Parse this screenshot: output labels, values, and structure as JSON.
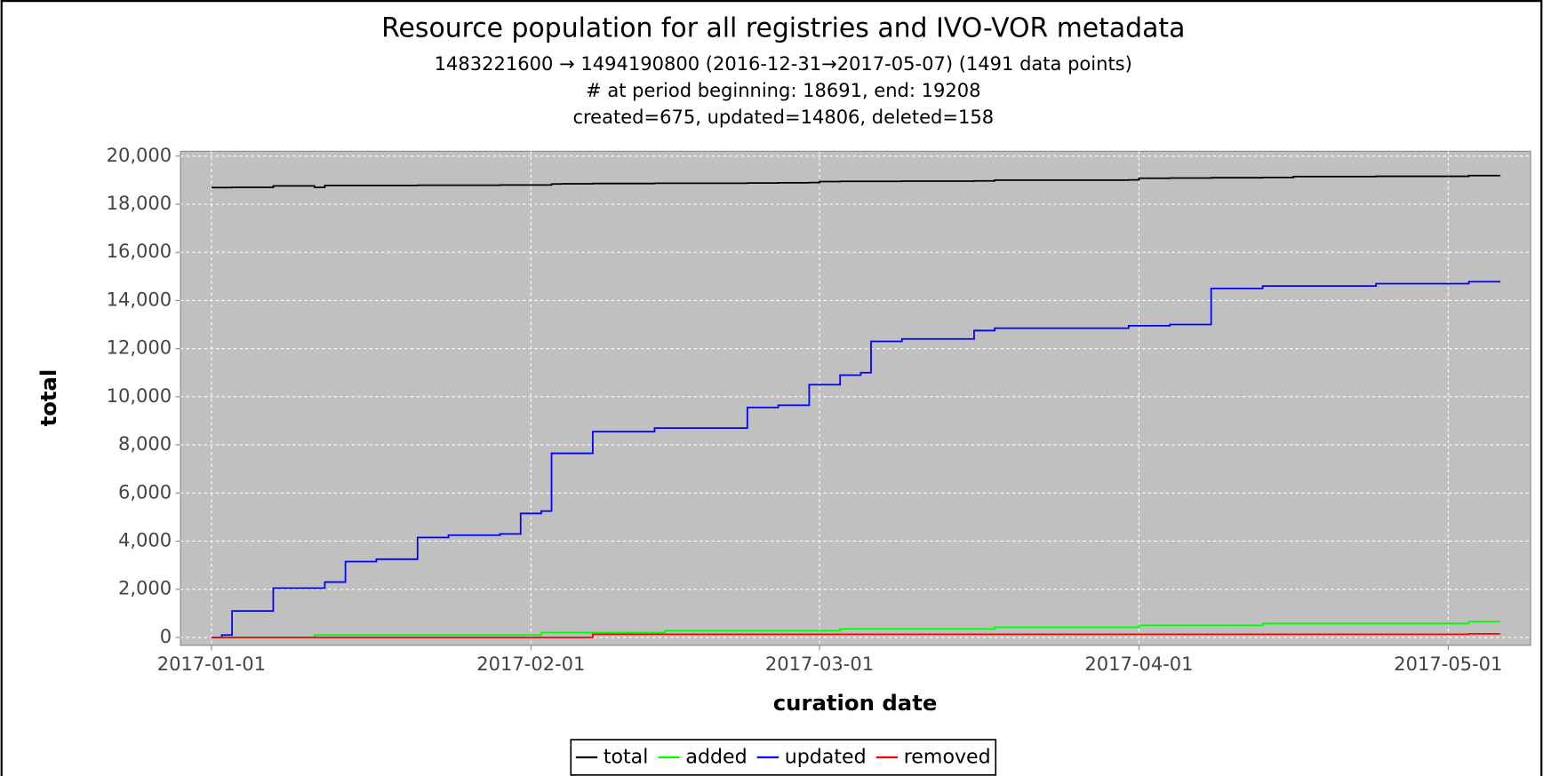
{
  "chart_data": {
    "type": "line",
    "title": "Resource population for all registries and IVO-VOR metadata",
    "subtitles": [
      "1483221600 → 1494190800 (2016-12-31→2017-05-07) (1491 data points)",
      "# at period beginning: 18691, end: 19208",
      "created=675, updated=14806, deleted=158"
    ],
    "x_label": "curation date",
    "y_label": "total",
    "step": true,
    "x": [
      "2017-01-01",
      "2017-01-02",
      "2017-01-03",
      "2017-01-07",
      "2017-01-11",
      "2017-01-12",
      "2017-01-14",
      "2017-01-17",
      "2017-01-21",
      "2017-01-24",
      "2017-01-29",
      "2017-01-31",
      "2017-02-02",
      "2017-02-03",
      "2017-02-04",
      "2017-02-07",
      "2017-02-13",
      "2017-02-14",
      "2017-02-22",
      "2017-02-25",
      "2017-02-28",
      "2017-03-01",
      "2017-03-03",
      "2017-03-05",
      "2017-03-06",
      "2017-03-09",
      "2017-03-16",
      "2017-03-18",
      "2017-03-31",
      "2017-04-01",
      "2017-04-04",
      "2017-04-08",
      "2017-04-13",
      "2017-04-16",
      "2017-04-24",
      "2017-05-03",
      "2017-05-06"
    ],
    "series": [
      {
        "name": "total",
        "color": "#000000",
        "values": [
          18691,
          18691,
          18700,
          18760,
          18700,
          18780,
          18780,
          18780,
          18790,
          18790,
          18800,
          18800,
          18800,
          18840,
          18850,
          18860,
          18870,
          18870,
          18880,
          18890,
          18900,
          18940,
          18950,
          18950,
          18950,
          18960,
          18970,
          19000,
          19010,
          19080,
          19090,
          19100,
          19110,
          19150,
          19160,
          19190,
          19208
        ]
      },
      {
        "name": "added",
        "color": "#00ff00",
        "values": [
          0,
          0,
          0,
          0,
          100,
          100,
          100,
          100,
          100,
          100,
          100,
          100,
          200,
          200,
          200,
          200,
          200,
          280,
          280,
          280,
          280,
          280,
          350,
          350,
          350,
          350,
          350,
          420,
          420,
          500,
          500,
          500,
          580,
          580,
          580,
          660,
          675
        ]
      },
      {
        "name": "updated",
        "color": "#0000ff",
        "values": [
          0,
          100,
          1100,
          2050,
          2050,
          2300,
          3150,
          3250,
          4150,
          4250,
          4300,
          5150,
          5250,
          7650,
          7650,
          8550,
          8700,
          8700,
          9550,
          9650,
          10500,
          10500,
          10900,
          11000,
          12300,
          12400,
          12750,
          12850,
          12950,
          12950,
          13000,
          14500,
          14600,
          14600,
          14700,
          14780,
          14806
        ]
      },
      {
        "name": "removed",
        "color": "#ff0000",
        "values": [
          0,
          0,
          0,
          0,
          0,
          0,
          0,
          0,
          0,
          0,
          0,
          0,
          0,
          0,
          0,
          130,
          130,
          130,
          130,
          130,
          130,
          130,
          130,
          130,
          130,
          130,
          130,
          130,
          130,
          130,
          130,
          130,
          130,
          130,
          130,
          150,
          158
        ]
      }
    ],
    "xlim": [
      "2016-12-29",
      "2017-05-09"
    ],
    "xticks": [
      "2017-01-01",
      "2017-02-01",
      "2017-03-01",
      "2017-04-01",
      "2017-05-01"
    ],
    "ylim": [
      -330,
      20200
    ],
    "yticks": [
      0,
      {
        "value": 2000,
        "label": "2,000"
      },
      {
        "value": 4000,
        "label": "4,000"
      },
      {
        "value": 6000,
        "label": "6,000"
      },
      {
        "value": 8000,
        "label": "8,000"
      },
      {
        "value": 10000,
        "label": "10,000"
      },
      {
        "value": 12000,
        "label": "12,000"
      },
      {
        "value": 14000,
        "label": "14,000"
      },
      {
        "value": 16000,
        "label": "16,000"
      },
      {
        "value": 18000,
        "label": "18,000"
      },
      {
        "value": 20000,
        "label": "20,000"
      }
    ],
    "grid": true,
    "legend": "bottom"
  }
}
